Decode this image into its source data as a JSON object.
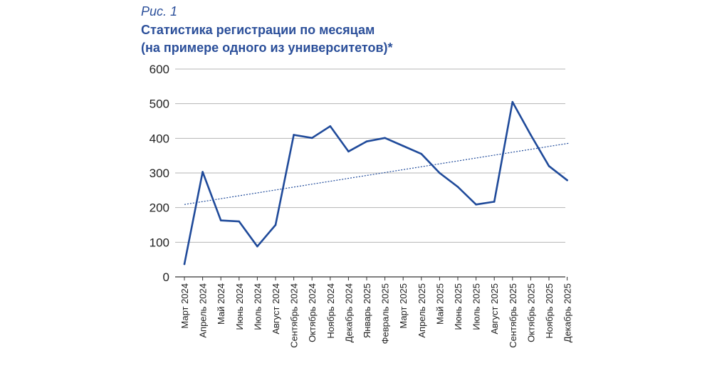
{
  "figure": {
    "label": "Рис. 1",
    "title_line1": "Статистика регистрации по месяцам",
    "title_line2": "(на примере одного из университетов)*"
  },
  "colors": {
    "series": "#1f4a9a",
    "trend": "#1f4a9a",
    "grid": "#b5b5b5",
    "title": "#2b4f9a"
  },
  "chart_data": {
    "type": "line",
    "title": "Статистика регистрации по месяцам (на примере одного из университетов)*",
    "xlabel": "",
    "ylabel": "",
    "ylim": [
      0,
      600
    ],
    "yticks": [
      0,
      100,
      200,
      300,
      400,
      500,
      600
    ],
    "grid": true,
    "legend": "none",
    "categories": [
      "Март 2024",
      "Апрель 2024",
      "Май 2024",
      "Июнь 2024",
      "Июль 2024",
      "Август 2024",
      "Сентябрь 2024",
      "Октябрь 2024",
      "Ноябрь 2024",
      "Декабрь 2024",
      "Январь 2025",
      "Февраль 2025",
      "Март 2025",
      "Апрель 2025",
      "Май 2025",
      "Июнь 2025",
      "Июль 2025",
      "Август 2025",
      "Сентябрь 2025",
      "Октябрь 2025",
      "Ноябрь 2025",
      "Декабрь 2025"
    ],
    "values": [
      37,
      303,
      163,
      160,
      88,
      150,
      410,
      401,
      435,
      362,
      391,
      401,
      378,
      355,
      300,
      260,
      209,
      217,
      505,
      410,
      320,
      279
    ],
    "trendline": {
      "style": "dotted",
      "start": 209,
      "end": 386
    }
  }
}
